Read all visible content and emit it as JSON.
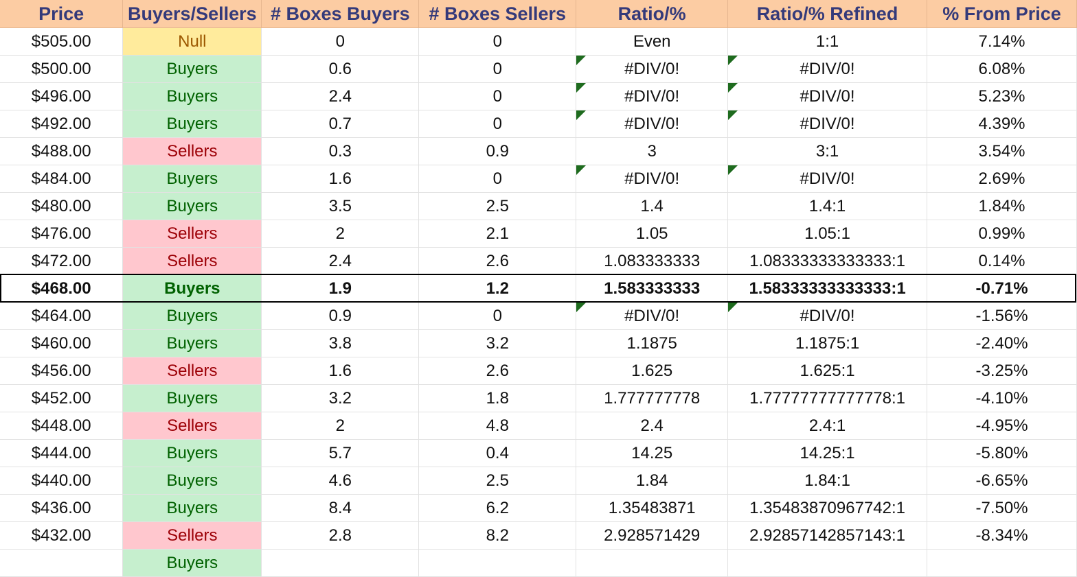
{
  "columns": [
    "Price",
    "Buyers/Sellers",
    "# Boxes Buyers",
    "# Boxes Sellers",
    "Ratio/%",
    "Ratio/% Refined",
    "% From Price"
  ],
  "status_colors": {
    "buyers_bg": "#c6efce",
    "buyers_text": "#006100",
    "sellers_bg": "#ffc7ce",
    "sellers_text": "#9c0006",
    "null_bg": "#ffeb9c",
    "null_text": "#9c5700",
    "header_bg": "#fccca3",
    "header_text": "#343a7a",
    "error_indicator": "#1e6b1e"
  },
  "current_price_row_index": 9,
  "rows": [
    {
      "price": "$505.00",
      "side": "Null",
      "boxes_buyers": "0",
      "boxes_sellers": "0",
      "ratio": "Even",
      "ratio_refined": "1:1",
      "from_price": "7.14%",
      "error_flag": false
    },
    {
      "price": "$500.00",
      "side": "Buyers",
      "boxes_buyers": "0.6",
      "boxes_sellers": "0",
      "ratio": "#DIV/0!",
      "ratio_refined": "#DIV/0!",
      "from_price": "6.08%",
      "error_flag": true
    },
    {
      "price": "$496.00",
      "side": "Buyers",
      "boxes_buyers": "2.4",
      "boxes_sellers": "0",
      "ratio": "#DIV/0!",
      "ratio_refined": "#DIV/0!",
      "from_price": "5.23%",
      "error_flag": true
    },
    {
      "price": "$492.00",
      "side": "Buyers",
      "boxes_buyers": "0.7",
      "boxes_sellers": "0",
      "ratio": "#DIV/0!",
      "ratio_refined": "#DIV/0!",
      "from_price": "4.39%",
      "error_flag": true
    },
    {
      "price": "$488.00",
      "side": "Sellers",
      "boxes_buyers": "0.3",
      "boxes_sellers": "0.9",
      "ratio": "3",
      "ratio_refined": "3:1",
      "from_price": "3.54%",
      "error_flag": false
    },
    {
      "price": "$484.00",
      "side": "Buyers",
      "boxes_buyers": "1.6",
      "boxes_sellers": "0",
      "ratio": "#DIV/0!",
      "ratio_refined": "#DIV/0!",
      "from_price": "2.69%",
      "error_flag": true
    },
    {
      "price": "$480.00",
      "side": "Buyers",
      "boxes_buyers": "3.5",
      "boxes_sellers": "2.5",
      "ratio": "1.4",
      "ratio_refined": "1.4:1",
      "from_price": "1.84%",
      "error_flag": false
    },
    {
      "price": "$476.00",
      "side": "Sellers",
      "boxes_buyers": "2",
      "boxes_sellers": "2.1",
      "ratio": "1.05",
      "ratio_refined": "1.05:1",
      "from_price": "0.99%",
      "error_flag": false
    },
    {
      "price": "$472.00",
      "side": "Sellers",
      "boxes_buyers": "2.4",
      "boxes_sellers": "2.6",
      "ratio": "1.083333333",
      "ratio_refined": "1.08333333333333:1",
      "from_price": "0.14%",
      "error_flag": false
    },
    {
      "price": "$468.00",
      "side": "Buyers",
      "boxes_buyers": "1.9",
      "boxes_sellers": "1.2",
      "ratio": "1.583333333",
      "ratio_refined": "1.58333333333333:1",
      "from_price": "-0.71%",
      "error_flag": false
    },
    {
      "price": "$464.00",
      "side": "Buyers",
      "boxes_buyers": "0.9",
      "boxes_sellers": "0",
      "ratio": "#DIV/0!",
      "ratio_refined": "#DIV/0!",
      "from_price": "-1.56%",
      "error_flag": true
    },
    {
      "price": "$460.00",
      "side": "Buyers",
      "boxes_buyers": "3.8",
      "boxes_sellers": "3.2",
      "ratio": "1.1875",
      "ratio_refined": "1.1875:1",
      "from_price": "-2.40%",
      "error_flag": false
    },
    {
      "price": "$456.00",
      "side": "Sellers",
      "boxes_buyers": "1.6",
      "boxes_sellers": "2.6",
      "ratio": "1.625",
      "ratio_refined": "1.625:1",
      "from_price": "-3.25%",
      "error_flag": false
    },
    {
      "price": "$452.00",
      "side": "Buyers",
      "boxes_buyers": "3.2",
      "boxes_sellers": "1.8",
      "ratio": "1.777777778",
      "ratio_refined": "1.77777777777778:1",
      "from_price": "-4.10%",
      "error_flag": false
    },
    {
      "price": "$448.00",
      "side": "Sellers",
      "boxes_buyers": "2",
      "boxes_sellers": "4.8",
      "ratio": "2.4",
      "ratio_refined": "2.4:1",
      "from_price": "-4.95%",
      "error_flag": false
    },
    {
      "price": "$444.00",
      "side": "Buyers",
      "boxes_buyers": "5.7",
      "boxes_sellers": "0.4",
      "ratio": "14.25",
      "ratio_refined": "14.25:1",
      "from_price": "-5.80%",
      "error_flag": false
    },
    {
      "price": "$440.00",
      "side": "Buyers",
      "boxes_buyers": "4.6",
      "boxes_sellers": "2.5",
      "ratio": "1.84",
      "ratio_refined": "1.84:1",
      "from_price": "-6.65%",
      "error_flag": false
    },
    {
      "price": "$436.00",
      "side": "Buyers",
      "boxes_buyers": "8.4",
      "boxes_sellers": "6.2",
      "ratio": "1.35483871",
      "ratio_refined": "1.35483870967742:1",
      "from_price": "-7.50%",
      "error_flag": false
    },
    {
      "price": "$432.00",
      "side": "Sellers",
      "boxes_buyers": "2.8",
      "boxes_sellers": "8.2",
      "ratio": "2.928571429",
      "ratio_refined": "2.92857142857143:1",
      "from_price": "-8.34%",
      "error_flag": false
    },
    {
      "price": "",
      "side": "Buyers",
      "boxes_buyers": "",
      "boxes_sellers": "",
      "ratio": "",
      "ratio_refined": "",
      "from_price": "",
      "error_flag": false
    }
  ]
}
